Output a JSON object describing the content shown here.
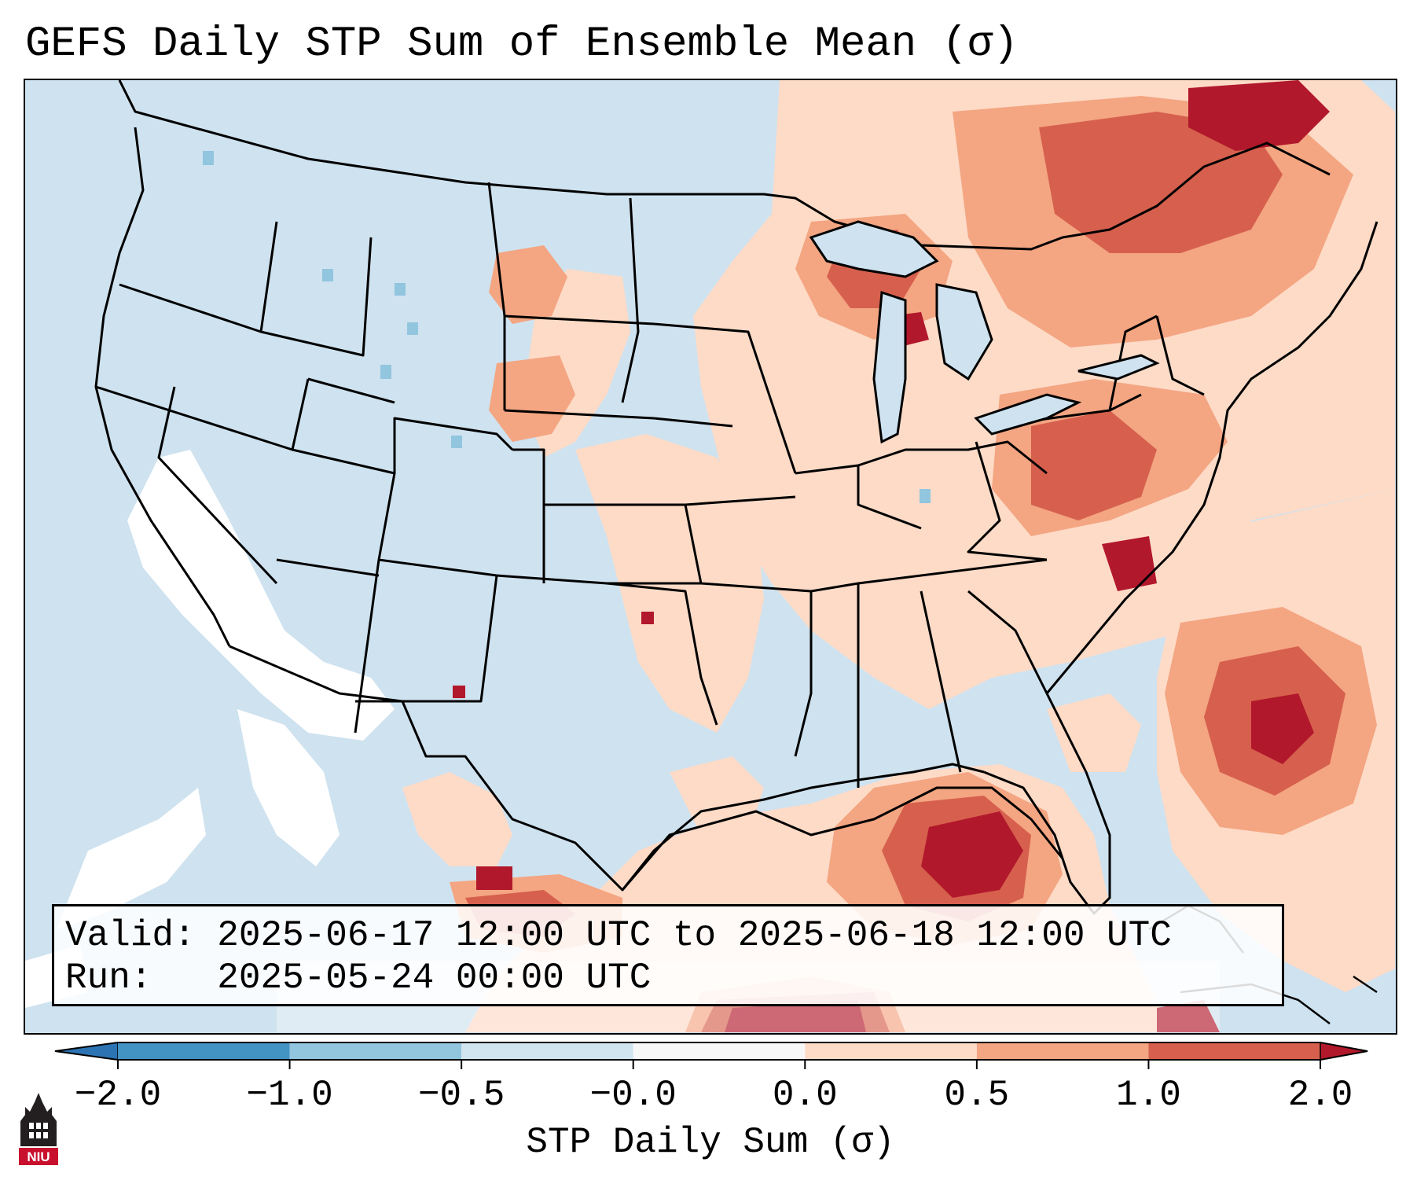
{
  "title": "GEFS Daily STP Sum of Ensemble Mean (σ)",
  "info": {
    "valid_label": "Valid:",
    "valid_value": "2025-06-17 12:00 UTC to 2025-06-18 12:00 UTC",
    "run_label": "Run:",
    "run_value": "2025-05-24 00:00 UTC"
  },
  "colorbar": {
    "label": "STP Daily Sum (σ)",
    "ticks": [
      "−2.0",
      "−1.0",
      "−0.5",
      "−0.0",
      "0.0",
      "0.5",
      "1.0",
      "2.0"
    ],
    "colors": [
      "#2b73b3",
      "#4393c3",
      "#92c5de",
      "#d1e5f0",
      "#f7f7f7",
      "#fddbc7",
      "#f4a582",
      "#d6604d",
      "#b2182b"
    ],
    "extend": "both"
  },
  "logo": {
    "text": "NIU"
  },
  "colors": {
    "ocean": "#cfe2ef",
    "land_neutral": "#cfe2ef",
    "positive_low": "#fddbc7",
    "positive_mid": "#f4a582",
    "positive_high": "#d6604d",
    "positive_max": "#b2182b",
    "near_zero": "#ffffff",
    "negative_low": "#92c5de"
  }
}
